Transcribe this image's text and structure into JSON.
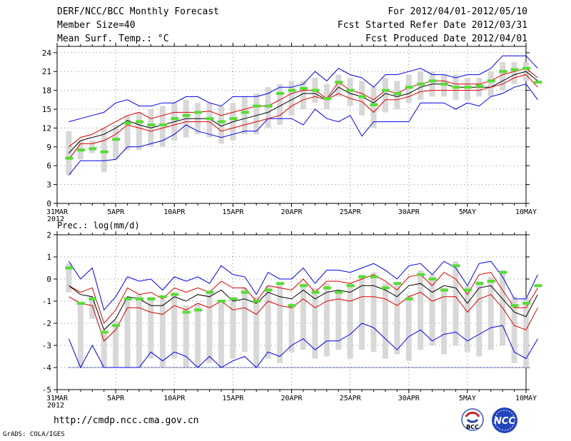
{
  "header": {
    "title": "DERF/NCC/BCC Monthly Forecast",
    "member_size": "Member Size=40",
    "variable": "Mean Surf. Temp.: °C",
    "period": "For 2012/04/01-2012/05/10",
    "refer_date": "Fcst Started Refer Date 2012/03/31",
    "produced_date": "Fcst Produced Date 2012/04/01"
  },
  "footer": {
    "url": "http://cmdp.ncc.cma.gov.cn",
    "credit": "GrADS: COLA/IGES",
    "logo_bcc": "BCC",
    "logo_ncc": "NCC"
  },
  "colors": {
    "envelope": "#0000ee",
    "band": "#dd0000",
    "mean": "#000000",
    "box": "#d8d8d8",
    "obs_marker": "#55dd33"
  },
  "chart_data": [
    {
      "type": "line",
      "title": "Mean Surf. Temp.: °C",
      "x_tick_labels": [
        "31MAR",
        "5APR",
        "10APR",
        "15APR",
        "20APR",
        "25APR",
        "30APR",
        "5MAY",
        "10MAY"
      ],
      "x_tick_days": [
        0,
        5,
        10,
        15,
        20,
        25,
        30,
        35,
        40
      ],
      "x_year_label": "2012",
      "ylim": [
        0,
        25
      ],
      "y_ticks": [
        0,
        3,
        6,
        9,
        12,
        15,
        18,
        21,
        24
      ],
      "grid": true,
      "series": [
        {
          "name": "max",
          "color": "#0000ee",
          "values": [
            null,
            4.5,
            6.8,
            6.8,
            6.8,
            7,
            9,
            9,
            9.5,
            10,
            11,
            12.5,
            11.5,
            11,
            10.5,
            11,
            11.5,
            11.5,
            13.5,
            13.5,
            13.5,
            12.5,
            15,
            13.5,
            13,
            14,
            10.7,
            13,
            13,
            13,
            13,
            16,
            16,
            16,
            15,
            16,
            15.5,
            17,
            17.5,
            18.5,
            19,
            16.5
          ]
        },
        {
          "name": "upper",
          "color": "#dd0000",
          "values": [
            null,
            9,
            10.5,
            11,
            12,
            13,
            14,
            14.5,
            13.5,
            14,
            14.5,
            14.5,
            14.5,
            14.7,
            14,
            14.5,
            15,
            15.5,
            15.5,
            16.5,
            17.5,
            18,
            18,
            16.7,
            19.3,
            18,
            17.5,
            16.5,
            18,
            17.5,
            18.5,
            19,
            19.5,
            19.5,
            19,
            19,
            19,
            19.5,
            20.5,
            21,
            21.5,
            20
          ]
        },
        {
          "name": "mean",
          "color": "#000000",
          "values": [
            null,
            8,
            10,
            10.5,
            11,
            12,
            13.2,
            12.5,
            12,
            12.5,
            13,
            13.5,
            13.5,
            13.5,
            12.3,
            13,
            13.5,
            14,
            14.5,
            15.5,
            16.5,
            17.5,
            17.5,
            16.5,
            18.5,
            17.5,
            17,
            16,
            17.5,
            17,
            17.5,
            18.5,
            19,
            19,
            18.5,
            18.5,
            18.5,
            18.5,
            19.5,
            20.5,
            21,
            19.5
          ]
        },
        {
          "name": "lower",
          "color": "#dd0000",
          "values": [
            null,
            7,
            9.5,
            9.5,
            10,
            11,
            12.5,
            12,
            11.5,
            12,
            12.5,
            13,
            13,
            13,
            11.5,
            12,
            12.5,
            13,
            13.5,
            14,
            15.5,
            16.5,
            17,
            16.5,
            17.5,
            16.7,
            16.2,
            14.5,
            16.5,
            16.5,
            17,
            17.8,
            18,
            18,
            18,
            18,
            18,
            18.5,
            19,
            20,
            20.5,
            18.5
          ]
        },
        {
          "name": "min",
          "color": "#0000ee",
          "values": [
            null,
            13,
            13.5,
            14,
            14.5,
            16,
            16.5,
            15.5,
            15.5,
            16,
            16,
            17,
            17,
            16,
            15.5,
            17,
            17,
            17,
            17.5,
            18.5,
            18.5,
            19,
            21,
            19.5,
            21.5,
            20.5,
            20,
            18.5,
            20.5,
            20.5,
            21,
            21.5,
            20.5,
            20.5,
            20,
            20.5,
            20.5,
            21.5,
            23.5,
            23.5,
            23.5,
            21.5
          ]
        }
      ],
      "obs": [
        null,
        7.2,
        8.5,
        8.7,
        8.2,
        10.2,
        12.8,
        13,
        12.5,
        12.5,
        13.5,
        14,
        14.5,
        13.5,
        13,
        13.5,
        14.5,
        15.5,
        15.5,
        17.5,
        18,
        18.3,
        18,
        16.7,
        19.3,
        18,
        17,
        15.7,
        18,
        17.5,
        18.5,
        19,
        19.5,
        19,
        18.5,
        18.5,
        18.7,
        19.5,
        21,
        21.3,
        21.5,
        19.3
      ],
      "box_low": [
        null,
        4.5,
        7,
        8,
        5,
        7,
        8.5,
        8.5,
        9,
        9,
        10,
        10.5,
        11,
        10.5,
        9.5,
        10,
        11,
        11,
        12,
        12.5,
        14,
        15,
        16,
        15,
        17,
        15.5,
        14,
        12,
        14.5,
        15,
        16,
        16.5,
        17,
        17,
        16.5,
        16.5,
        17,
        17,
        18,
        19,
        19.5,
        17
      ],
      "box_high": [
        null,
        11.5,
        10,
        10,
        12,
        12.5,
        14,
        14.5,
        15,
        15.5,
        16,
        16.5,
        16,
        16,
        15.5,
        16,
        17,
        17.5,
        18.5,
        19,
        19.5,
        19.5,
        20,
        19,
        20.5,
        20,
        19.5,
        18.5,
        20,
        19.5,
        20.5,
        21,
        21,
        20.5,
        20.5,
        20,
        20,
        21,
        22.5,
        22.5,
        22.5,
        20.5
      ]
    },
    {
      "type": "line",
      "title": "Prec.: log(mm/d)",
      "x_tick_labels": [
        "31MAR",
        "5APR",
        "10APR",
        "15APR",
        "20APR",
        "25APR",
        "30APR",
        "5MAY",
        "10MAY"
      ],
      "x_tick_days": [
        0,
        5,
        10,
        15,
        20,
        25,
        30,
        35,
        40
      ],
      "x_year_label": "2012",
      "ylim": [
        -5,
        2
      ],
      "y_ticks": [
        -5,
        -4,
        -3,
        -2,
        -1,
        0,
        1,
        2
      ],
      "grid": true,
      "series": [
        {
          "name": "max",
          "color": "#0000ee",
          "values": [
            null,
            0.8,
            0,
            0.5,
            -1.4,
            -0.8,
            0.1,
            -0.1,
            0,
            -0.5,
            0.1,
            -0.1,
            0.1,
            -0.2,
            0.6,
            0.2,
            0.1,
            -0.7,
            0.3,
            0,
            0,
            0.5,
            -0.2,
            0.4,
            0.4,
            0.3,
            0.5,
            0.7,
            0.4,
            0,
            0.6,
            0.7,
            0.2,
            0.8,
            0.5,
            -0.3,
            0.7,
            0.8,
            0.1,
            -0.9,
            -0.9,
            0.2
          ]
        },
        {
          "name": "upper",
          "color": "#dd0000",
          "values": [
            null,
            -0.3,
            -0.6,
            -0.4,
            -2,
            -1.4,
            -0.4,
            -0.7,
            -0.6,
            -0.9,
            -0.4,
            -0.6,
            -0.4,
            -0.6,
            -0.1,
            -0.4,
            -0.4,
            -1,
            -0.3,
            -0.4,
            -0.5,
            0,
            -0.6,
            -0.1,
            -0.1,
            -0.2,
            0,
            0.2,
            -0.1,
            -0.5,
            0.1,
            0.2,
            -0.3,
            0.3,
            0,
            -0.7,
            0.2,
            0.3,
            -0.5,
            -1.3,
            -1.3,
            -0.4
          ]
        },
        {
          "name": "mean",
          "color": "#000000",
          "values": [
            null,
            -0.3,
            -0.7,
            -0.8,
            -2.3,
            -1.8,
            -0.8,
            -0.9,
            -1.2,
            -1.2,
            -0.8,
            -1,
            -0.7,
            -0.8,
            -0.5,
            -1,
            -0.9,
            -1.1,
            -0.6,
            -0.8,
            -0.9,
            -0.5,
            -0.9,
            -0.6,
            -0.5,
            -0.6,
            -0.3,
            -0.3,
            -0.5,
            -0.8,
            -0.3,
            -0.2,
            -0.6,
            -0.3,
            -0.4,
            -1.1,
            -0.4,
            -0.3,
            -0.9,
            -1.5,
            -1.7,
            -0.7
          ]
        },
        {
          "name": "lower",
          "color": "#dd0000",
          "values": [
            null,
            -0.8,
            -1.1,
            -1.2,
            -2.8,
            -2.3,
            -1.3,
            -1.3,
            -1.5,
            -1.6,
            -1.2,
            -1.4,
            -1.1,
            -1.3,
            -1,
            -1.4,
            -1.3,
            -1.6,
            -1,
            -1.2,
            -1.3,
            -0.9,
            -1.3,
            -1,
            -0.9,
            -1,
            -0.8,
            -0.8,
            -0.9,
            -1.2,
            -0.8,
            -0.6,
            -1,
            -0.8,
            -0.8,
            -1.5,
            -0.9,
            -0.7,
            -1.3,
            -2.1,
            -2.3,
            -1.3
          ]
        },
        {
          "name": "min",
          "color": "#0000ee",
          "values": [
            null,
            -2.7,
            -4,
            -3,
            -4,
            -4,
            -4,
            -4,
            -3.3,
            -3.7,
            -3.3,
            -3.5,
            -4,
            -3.5,
            -4,
            -3.7,
            -3.5,
            -4,
            -3.3,
            -3.5,
            -3,
            -2.7,
            -3.2,
            -2.8,
            -2.8,
            -2.5,
            -2,
            -2.2,
            -2.7,
            -3.2,
            -2.6,
            -2.3,
            -2.8,
            -2.5,
            -2.4,
            -2.8,
            -2.5,
            -2.2,
            -2.1,
            -3.3,
            -3.6,
            -2.7
          ]
        }
      ],
      "obs": [
        null,
        0.5,
        -1.1,
        -0.9,
        -2.4,
        -2.1,
        -0.9,
        -0.9,
        -0.9,
        -0.8,
        -0.7,
        -1.5,
        -1.4,
        -0.6,
        -1,
        -0.9,
        -0.6,
        -1,
        -0.5,
        -0.2,
        -1.2,
        -0.3,
        -0.6,
        -0.4,
        -0.6,
        -0.3,
        0.1,
        0.1,
        -0.4,
        -0.2,
        -0.9,
        0.2,
        0,
        -0.5,
        0.6,
        -0.5,
        -0.2,
        -0.1,
        0.3,
        -1.2,
        -1.1,
        -0.3
      ],
      "box_low": [
        null,
        -0.6,
        -4,
        -1.8,
        -4,
        -4,
        -4,
        -4,
        -3.6,
        -4,
        -3.6,
        -4,
        -4,
        -3.8,
        -4,
        -3.6,
        -3.3,
        -4,
        -3.6,
        -3.8,
        -3.3,
        -3.2,
        -3.6,
        -3.5,
        -3.2,
        -3.6,
        -3.2,
        -3.3,
        -3.6,
        -3.4,
        -3.7,
        -3.2,
        -3,
        -3.4,
        -3,
        -3.3,
        -3.5,
        -3.2,
        -3,
        -3.8,
        -4,
        -4
      ],
      "box_high": [
        null,
        0.7,
        -1.1,
        -0.8,
        -2.4,
        -1.9,
        -0.8,
        -0.7,
        -0.8,
        -0.9,
        -0.6,
        -1.2,
        -1.1,
        -0.5,
        -1,
        -0.8,
        -0.4,
        -0.8,
        -0.3,
        -0.2,
        -1.1,
        -0.2,
        -0.4,
        -0.2,
        -0.5,
        -0.2,
        0.2,
        0.3,
        -0.2,
        -0.2,
        -0.7,
        0.4,
        0.2,
        -0.4,
        0.8,
        -0.3,
        -0.1,
        0.1,
        0.4,
        -0.8,
        -0.8,
        0.1
      ]
    }
  ]
}
